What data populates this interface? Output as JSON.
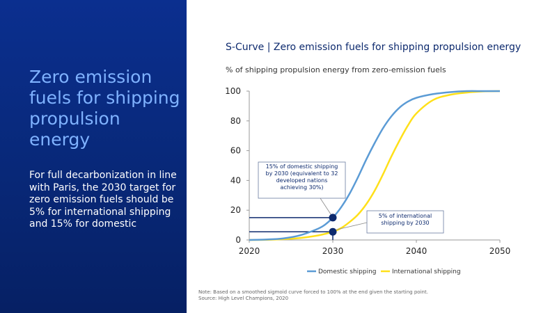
{
  "left_panel": {
    "title": "Zero emission fuels for shipping propulsion energy",
    "body": "For full decarbonization in line with Paris, the 2030 target for zero emission fuels should be 5% for international shipping and 15% for domestic"
  },
  "chart_data": {
    "type": "line",
    "title": "S-Curve | Zero emission fuels for shipping propulsion energy",
    "subtitle": "% of shipping propulsion energy from zero-emission fuels",
    "xlim": [
      2020,
      2050
    ],
    "ylim": [
      0,
      100
    ],
    "x_ticks": [
      "2020",
      "2030",
      "2040",
      "2050"
    ],
    "y_ticks": [
      "0",
      "20",
      "40",
      "60",
      "80",
      "100"
    ],
    "grid": false,
    "legend_position": "bottom",
    "x": [
      2020,
      2022,
      2024,
      2026,
      2028,
      2029,
      2030,
      2031,
      2032,
      2033,
      2034,
      2035,
      2036,
      2037,
      2038,
      2039,
      2040,
      2042,
      2044,
      2046,
      2048,
      2050
    ],
    "series": [
      {
        "name": "Domestic shipping",
        "color": "#5b9bd5",
        "values": [
          0,
          0.3,
          1,
          3,
          7,
          10,
          15,
          22,
          31,
          42,
          54,
          65,
          75,
          83,
          89,
          93,
          95.5,
          98,
          99.3,
          100,
          100,
          100
        ]
      },
      {
        "name": "International shipping",
        "color": "#ffe01a",
        "values": [
          0,
          0.1,
          0.5,
          1.3,
          2.8,
          4,
          5.5,
          8,
          12,
          17,
          24,
          33,
          44,
          56,
          67,
          77,
          85,
          94,
          97.5,
          99,
          99.8,
          100
        ]
      }
    ],
    "markers": [
      {
        "x": 2030,
        "y": 15,
        "color": "#0d2a6e"
      },
      {
        "x": 2030,
        "y": 5.5,
        "color": "#0d2a6e"
      }
    ],
    "annotations": [
      {
        "lines": [
          "15% of domestic shipping",
          "by 2030 (equivalent to 32",
          "developed nations",
          "achieving 30%)"
        ]
      },
      {
        "lines": [
          "5% of international",
          "shipping by 2030"
        ]
      }
    ]
  },
  "note": {
    "line1": "Note: Based on a smoothed sigmoid curve forced to 100% at the end given the starting point.",
    "line2": "Source: High Level Champions, 2020"
  }
}
